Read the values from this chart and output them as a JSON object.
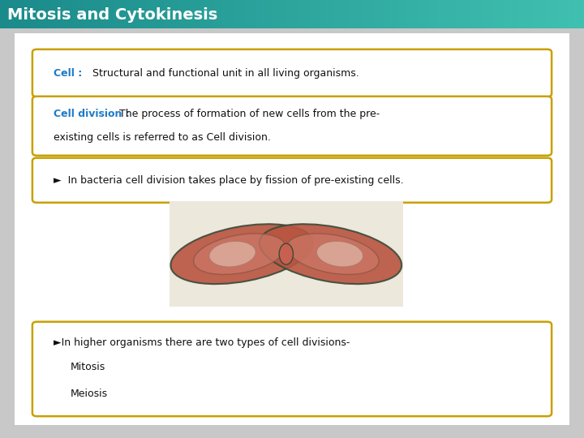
{
  "title": "Mitosis and Cytokinesis",
  "title_bg_left": "#1A8A8A",
  "title_bg_right": "#40C0B0",
  "title_text_color": "#FFFFFF",
  "title_fontsize": 14,
  "slide_bg": "#C8C8C8",
  "content_bg": "#FFFFFF",
  "outer_border": "#BBBBBB",
  "box_border_color": "#C8A000",
  "box1_bold": "Cell :",
  "box1_bold_color": "#1E7BC8",
  "box1_text": " Structural and functional unit in all living organisms.",
  "box2_bold": "Cell division :",
  "box2_bold_color": "#1E7BC8",
  "box2_text_line1": " The process of formation of new cells from the pre-",
  "box2_text_line2": "existing cells is referred to as Cell division.",
  "box3_text": "►  In bacteria cell division takes place by fission of pre-existing cells.",
  "box4_line1": "►In higher organisms there are two types of cell divisions-",
  "box4_line2": "    Mitosis",
  "box4_line3": "    Meiosis",
  "text_color": "#111111",
  "text_fontsize": 9.0,
  "lw": 1.8
}
